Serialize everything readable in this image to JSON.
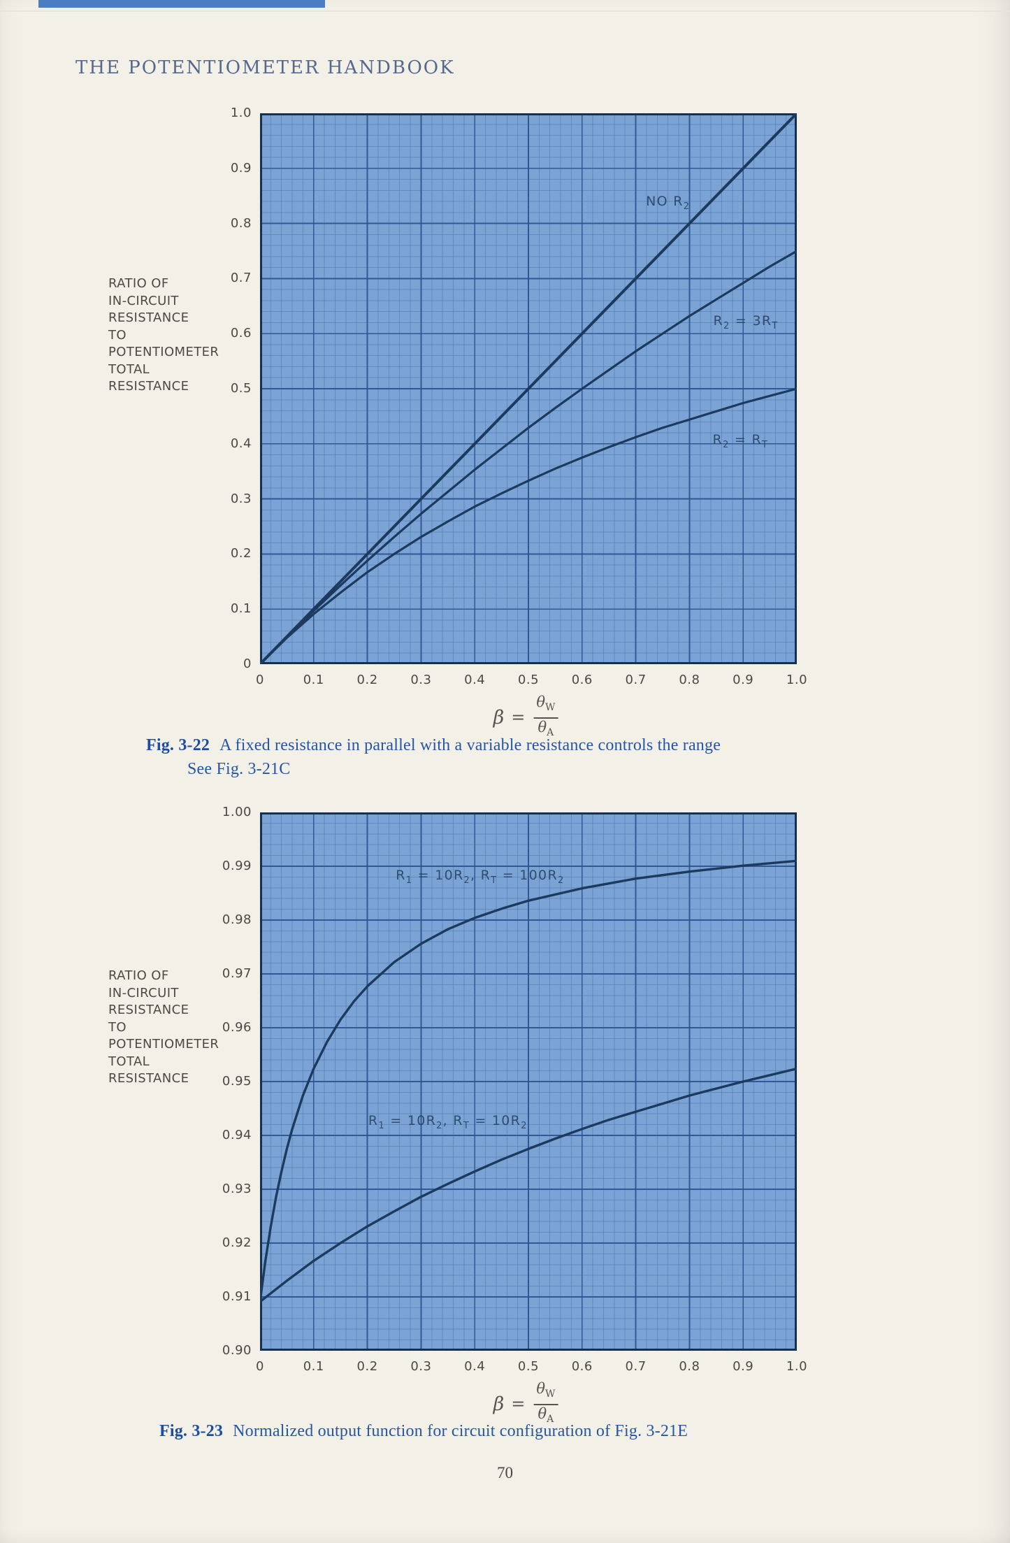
{
  "page": {
    "header": "THE POTENTIOMETER HANDBOOK",
    "page_number": "70"
  },
  "colors": {
    "grid_bg": "#7ba3d3",
    "grid_minor": "#4e7cb8",
    "grid_major": "#2b5291",
    "plot_border": "#16304f",
    "curve": "#1c3a5e"
  },
  "ylabel_lines": [
    "RATIO OF",
    "IN-CIRCUIT",
    "RESISTANCE",
    "TO",
    "POTENTIOMETER",
    "TOTAL",
    "RESISTANCE"
  ],
  "formula": {
    "lhs": "β",
    "eq": "=",
    "num_main": "θ",
    "num_sub": "W",
    "den_main": "θ",
    "den_sub": "A"
  },
  "figure1": {
    "caption_fig": "Fig. 3-22",
    "caption_text": "A fixed resistance in parallel with a variable resistance controls the range",
    "caption_line2": "See Fig. 3-21C"
  },
  "figure2": {
    "caption_fig": "Fig. 3-23",
    "caption_text": "Normalized output function for circuit configuration of Fig. 3-21E"
  },
  "chart_data": [
    {
      "type": "line",
      "title": "",
      "xlabel": "β = θW/θA",
      "ylabel": "RATIO OF IN-CIRCUIT RESISTANCE TO POTENTIOMETER TOTAL RESISTANCE",
      "xlim": [
        0,
        1.0
      ],
      "ylim": [
        0,
        1.0
      ],
      "grid": "on",
      "minor_divisions_per_major": 5,
      "x_ticks": [
        "0",
        "0.1",
        "0.2",
        "0.3",
        "0.4",
        "0.5",
        "0.6",
        "0.7",
        "0.8",
        "0.9",
        "1.0"
      ],
      "y_ticks": [
        "1.0",
        "0.9",
        "0.8",
        "0.7",
        "0.6",
        "0.5",
        "0.4",
        "0.3",
        "0.2",
        "0.1",
        "0"
      ],
      "series": [
        {
          "name": "NO R2",
          "label_pos": {
            "x": 0.76,
            "y": 0.838
          },
          "x": [
            0,
            0.1,
            0.2,
            0.3,
            0.4,
            0.5,
            0.6,
            0.7,
            0.8,
            0.9,
            1.0
          ],
          "y": [
            0,
            0.1,
            0.2,
            0.3,
            0.4,
            0.5,
            0.6,
            0.7,
            0.8,
            0.9,
            1.0
          ]
        },
        {
          "name": "R2 = 3RT",
          "label_pos": {
            "x": 0.905,
            "y": 0.62
          },
          "x": [
            0,
            0.05,
            0.1,
            0.15,
            0.2,
            0.25,
            0.3,
            0.35,
            0.4,
            0.45,
            0.5,
            0.55,
            0.6,
            0.65,
            0.7,
            0.75,
            0.8,
            0.85,
            0.9,
            0.95,
            1.0
          ],
          "y": [
            0,
            0.049,
            0.097,
            0.143,
            0.188,
            0.231,
            0.273,
            0.313,
            0.353,
            0.391,
            0.429,
            0.465,
            0.5,
            0.534,
            0.568,
            0.6,
            0.632,
            0.662,
            0.692,
            0.722,
            0.75
          ]
        },
        {
          "name": "R2 = RT",
          "label_pos": {
            "x": 0.895,
            "y": 0.405
          },
          "x": [
            0,
            0.05,
            0.1,
            0.15,
            0.2,
            0.25,
            0.3,
            0.35,
            0.4,
            0.45,
            0.5,
            0.55,
            0.6,
            0.65,
            0.7,
            0.75,
            0.8,
            0.85,
            0.9,
            0.95,
            1.0
          ],
          "y": [
            0,
            0.048,
            0.091,
            0.13,
            0.167,
            0.2,
            0.231,
            0.259,
            0.286,
            0.31,
            0.333,
            0.355,
            0.375,
            0.394,
            0.412,
            0.429,
            0.444,
            0.459,
            0.474,
            0.487,
            0.5
          ]
        }
      ]
    },
    {
      "type": "line",
      "title": "",
      "xlabel": "β = θW/θA",
      "ylabel": "RATIO OF IN-CIRCUIT RESISTANCE TO POTENTIOMETER TOTAL RESISTANCE",
      "xlim": [
        0,
        1.0
      ],
      "ylim": [
        0.9,
        1.0
      ],
      "grid": "on",
      "minor_divisions_per_major": 5,
      "x_ticks": [
        "0",
        "0.1",
        "0.2",
        "0.3",
        "0.4",
        "0.5",
        "0.6",
        "0.7",
        "0.8",
        "0.9",
        "1.0"
      ],
      "y_ticks": [
        "1.00",
        "0.99",
        "0.98",
        "0.97",
        "0.96",
        "0.95",
        "0.94",
        "0.93",
        "0.92",
        "0.91",
        "0.90"
      ],
      "series": [
        {
          "name": "R1 = 10R2, RT = 100R2",
          "label_pos": {
            "x": 0.41,
            "y": 0.988
          },
          "x": [
            0,
            0.01,
            0.02,
            0.03,
            0.04,
            0.05,
            0.06,
            0.08,
            0.1,
            0.125,
            0.15,
            0.175,
            0.2,
            0.25,
            0.3,
            0.35,
            0.4,
            0.45,
            0.5,
            0.6,
            0.7,
            0.8,
            0.9,
            1.0
          ],
          "y": [
            0.9091,
            0.9167,
            0.9231,
            0.9286,
            0.9333,
            0.9375,
            0.9412,
            0.9474,
            0.9524,
            0.9574,
            0.9615,
            0.9649,
            0.9677,
            0.9722,
            0.9756,
            0.9783,
            0.9804,
            0.9821,
            0.9836,
            0.9859,
            0.9877,
            0.989,
            0.9901,
            0.991
          ]
        },
        {
          "name": "R1 = 10R2, RT = 10R2",
          "label_pos": {
            "x": 0.35,
            "y": 0.9425
          },
          "x": [
            0,
            0.05,
            0.1,
            0.15,
            0.2,
            0.25,
            0.3,
            0.35,
            0.4,
            0.45,
            0.5,
            0.55,
            0.6,
            0.65,
            0.7,
            0.75,
            0.8,
            0.85,
            0.9,
            0.95,
            1.0
          ],
          "y": [
            0.9091,
            0.913,
            0.9167,
            0.92,
            0.9231,
            0.9259,
            0.9286,
            0.931,
            0.9333,
            0.9355,
            0.9375,
            0.9394,
            0.9412,
            0.9429,
            0.9444,
            0.9459,
            0.9474,
            0.9487,
            0.95,
            0.9512,
            0.9524
          ]
        }
      ]
    }
  ]
}
